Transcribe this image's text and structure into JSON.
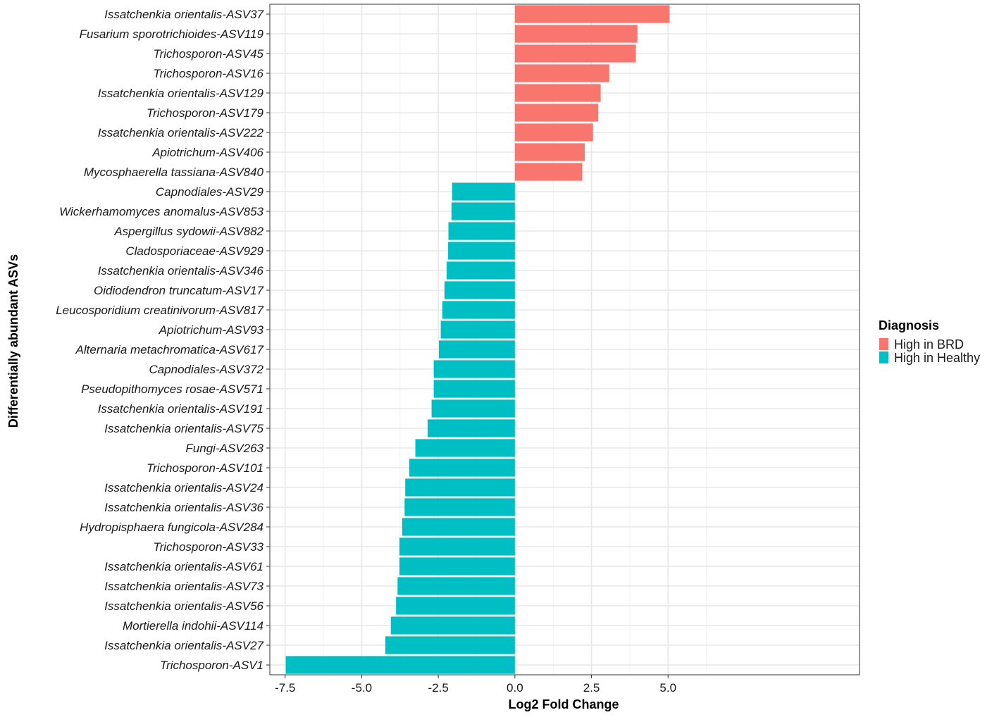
{
  "chart_data": {
    "type": "bar",
    "orientation": "horizontal",
    "title": "",
    "xlabel": "Log2 Fold Change",
    "ylabel": "Differentially abundant ASVs",
    "xlim": [
      -8.0,
      11.25
    ],
    "xticks": [
      -7.5,
      -5.0,
      -2.5,
      0.0,
      2.5,
      5.0
    ],
    "xtick_labels": [
      "-7.5",
      "-5.0",
      "-2.5",
      "0.0",
      "2.5",
      "5.0"
    ],
    "grid": true,
    "legend": {
      "title": "Diagnosis",
      "placement": "right",
      "entries": [
        {
          "label": "High in BRD",
          "color": "#F8766D"
        },
        {
          "label": "High in Healthy",
          "color": "#00BFC4"
        }
      ]
    },
    "categories": [
      "Issatchenkia orientalis-ASV37",
      "Fusarium sporotrichioides-ASV119",
      "Trichosporon-ASV45",
      "Trichosporon-ASV16",
      "Issatchenkia orientalis-ASV129",
      "Trichosporon-ASV179",
      "Issatchenkia orientalis-ASV222",
      "Apiotrichum-ASV406",
      "Mycosphaerella tassiana-ASV840",
      "Capnodiales-ASV29",
      "Wickerhamomyces anomalus-ASV853",
      "Aspergillus sydowii-ASV882",
      "Cladosporiaceae-ASV929",
      "Issatchenkia orientalis-ASV346",
      "Oidiodendron truncatum-ASV17",
      "Leucosporidium creatinivorum-ASV817",
      "Apiotrichum-ASV93",
      "Alternaria metachromatica-ASV617",
      "Capnodiales-ASV372",
      "Pseudopithomyces rosae-ASV571",
      "Issatchenkia orientalis-ASV191",
      "Issatchenkia orientalis-ASV75",
      "Fungi-ASV263",
      "Trichosporon-ASV101",
      "Issatchenkia orientalis-ASV24",
      "Issatchenkia orientalis-ASV36",
      "Hydropisphaera fungicola-ASV284",
      "Trichosporon-ASV33",
      "Issatchenkia orientalis-ASV61",
      "Issatchenkia orientalis-ASV73",
      "Issatchenkia orientalis-ASV56",
      "Mortierella indohii-ASV114",
      "Issatchenkia orientalis-ASV27",
      "Trichosporon-ASV1"
    ],
    "values": [
      5.05,
      4.0,
      3.95,
      3.08,
      2.8,
      2.72,
      2.55,
      2.28,
      2.2,
      -2.05,
      -2.07,
      -2.17,
      -2.18,
      -2.23,
      -2.3,
      -2.37,
      -2.42,
      -2.48,
      -2.65,
      -2.65,
      -2.72,
      -2.85,
      -3.25,
      -3.45,
      -3.58,
      -3.6,
      -3.68,
      -3.77,
      -3.77,
      -3.83,
      -3.88,
      -4.05,
      -4.23,
      -7.48
    ],
    "groups": [
      "High in BRD",
      "High in BRD",
      "High in BRD",
      "High in BRD",
      "High in BRD",
      "High in BRD",
      "High in BRD",
      "High in BRD",
      "High in BRD",
      "High in Healthy",
      "High in Healthy",
      "High in Healthy",
      "High in Healthy",
      "High in Healthy",
      "High in Healthy",
      "High in Healthy",
      "High in Healthy",
      "High in Healthy",
      "High in Healthy",
      "High in Healthy",
      "High in Healthy",
      "High in Healthy",
      "High in Healthy",
      "High in Healthy",
      "High in Healthy",
      "High in Healthy",
      "High in Healthy",
      "High in Healthy",
      "High in Healthy",
      "High in Healthy",
      "High in Healthy",
      "High in Healthy",
      "High in Healthy",
      "High in Healthy"
    ]
  }
}
